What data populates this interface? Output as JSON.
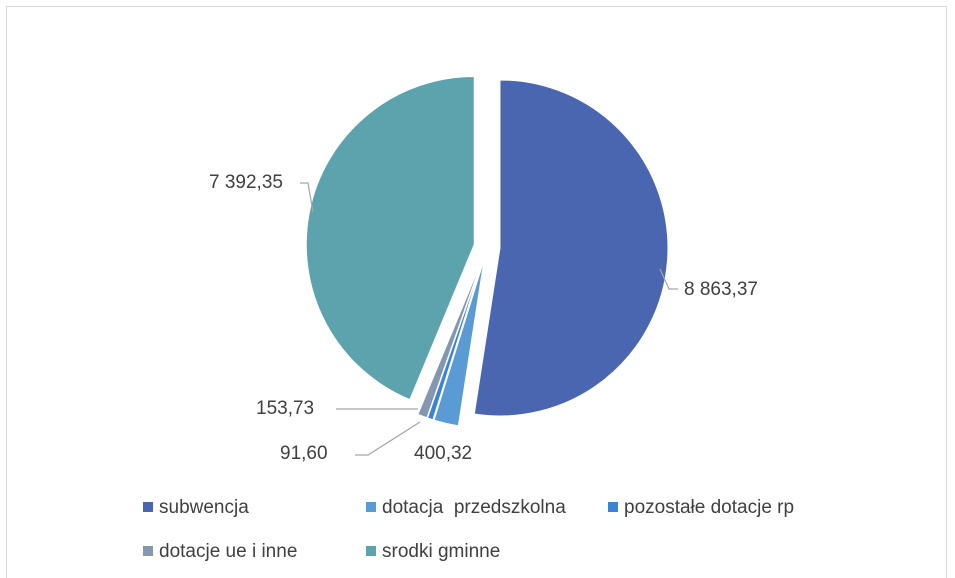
{
  "chart_data": {
    "type": "pie",
    "title": "",
    "series": [
      {
        "name": "subwencja",
        "value": 8863.37,
        "label": "8 863,37",
        "color": "#4a66b0"
      },
      {
        "name": "dotacja  przedszkolna",
        "value": 400.32,
        "label": "400,32",
        "color": "#5b9bd5"
      },
      {
        "name": "pozostałe dotacje rp",
        "value": 91.6,
        "label": "91,60",
        "color": "#3a83d6"
      },
      {
        "name": "dotacje ue i inne",
        "value": 153.73,
        "label": "153,73",
        "color": "#8496b0"
      },
      {
        "name": "srodki gminne",
        "value": 7392.35,
        "label": "7 392,35",
        "color": "#5ca3ae"
      }
    ],
    "legend_position": "bottom"
  }
}
